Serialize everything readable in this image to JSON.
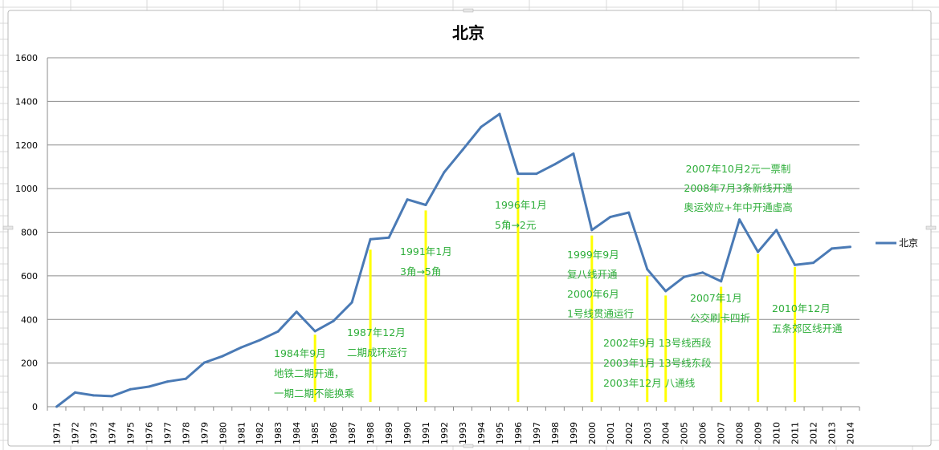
{
  "chart_data": {
    "type": "line",
    "title": "北京",
    "xlabel": "",
    "ylabel": "",
    "ylim": [
      0,
      1600
    ],
    "yticks": [
      0,
      200,
      400,
      600,
      800,
      1000,
      1200,
      1400,
      1600
    ],
    "grid": true,
    "legend_position": "right",
    "categories": [
      "1971",
      "1972",
      "1973",
      "1974",
      "1975",
      "1976",
      "1977",
      "1978",
      "1979",
      "1980",
      "1981",
      "1982",
      "1983",
      "1984",
      "1985",
      "1986",
      "1987",
      "1988",
      "1989",
      "1990",
      "1991",
      "1992",
      "1993",
      "1994",
      "1995",
      "1996",
      "1997",
      "1998",
      "1999",
      "2000",
      "2001",
      "2002",
      "2003",
      "2004",
      "2005",
      "2006",
      "2007",
      "2008",
      "2009",
      "2010",
      "2011",
      "2012",
      "2013",
      "2014"
    ],
    "series": [
      {
        "name": "北京",
        "color": "#4a7ab5",
        "values": [
          0,
          65,
          52,
          48,
          80,
          92,
          115,
          128,
          202,
          232,
          272,
          305,
          345,
          435,
          346,
          393,
          478,
          768,
          775,
          950,
          925,
          1075,
          1178,
          1283,
          1342,
          1068,
          1068,
          1112,
          1160,
          810,
          870,
          890,
          630,
          530,
          595,
          615,
          575,
          858,
          710,
          810,
          650,
          660,
          725,
          733
        ]
      }
    ],
    "markers": {
      "color": "#ffff00",
      "items": [
        {
          "year": "1985",
          "top": 330
        },
        {
          "year": "1988",
          "top": 720
        },
        {
          "year": "1991",
          "top": 900
        },
        {
          "year": "1996",
          "top": 1050
        },
        {
          "year": "2000",
          "top": 785
        },
        {
          "year": "2003",
          "top": 600
        },
        {
          "year": "2004",
          "top": 510
        },
        {
          "year": "2007",
          "top": 550
        },
        {
          "year": "2009",
          "top": 700
        },
        {
          "year": "2011",
          "top": 640
        }
      ]
    },
    "annotations": [
      {
        "lines": [
          "1984年9月",
          "地铁二期开通，",
          "一期二期不能换乘"
        ]
      },
      {
        "lines": [
          "1987年12月",
          "二期成环运行"
        ]
      },
      {
        "lines": [
          "1991年1月",
          "3角→5角"
        ]
      },
      {
        "lines": [
          "1996年1月",
          "5角→2元"
        ]
      },
      {
        "lines": [
          "1999年9月",
          "复八线开通",
          "2000年6月",
          "1号线贯通运行"
        ]
      },
      {
        "lines": [
          "2002年9月 13号线西段",
          "2003年1月 13号线东段",
          "2003年12月 八通线"
        ]
      },
      {
        "lines": [
          "2007年10月2元一票制",
          "2008年7月3条新线开通",
          "奥运效应+年中开通虚高"
        ]
      },
      {
        "lines": [
          "2007年1月",
          "公交刷卡四折"
        ]
      },
      {
        "lines": [
          "2010年12月",
          "五条郊区线开通"
        ]
      }
    ],
    "annotation_color": "#2eae3a"
  }
}
